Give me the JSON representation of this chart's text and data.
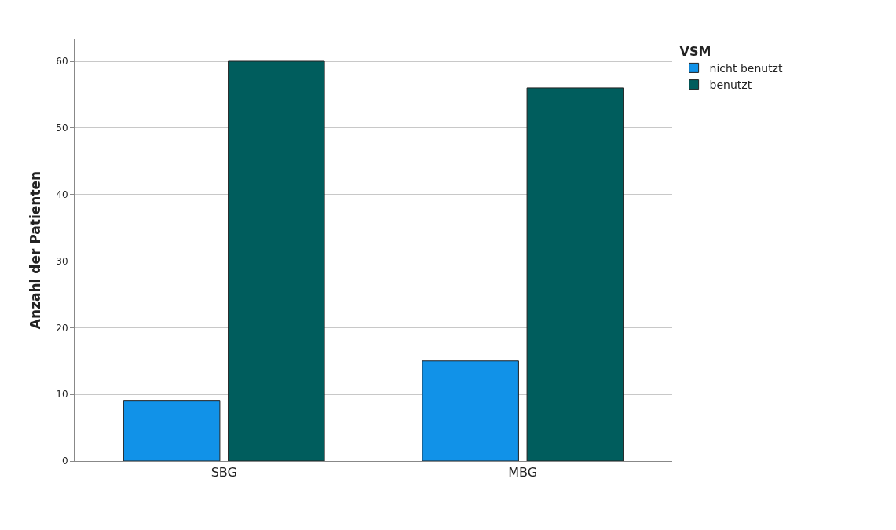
{
  "chart_data": {
    "type": "bar",
    "categories": [
      "SBG",
      "MBG"
    ],
    "ylabel": "Anzahl der Patienten",
    "legend_title": "VSM",
    "series": [
      {
        "name": "nicht benutzt",
        "color": "#1192e8",
        "values": [
          9,
          15
        ]
      },
      {
        "name": "benutzt",
        "color": "#005d5d",
        "values": [
          60,
          56
        ]
      }
    ],
    "ylim": [
      0,
      63.3
    ],
    "yticks": [
      0,
      10,
      20,
      30,
      40,
      50,
      60
    ],
    "grid": "y",
    "legend": "top right"
  }
}
